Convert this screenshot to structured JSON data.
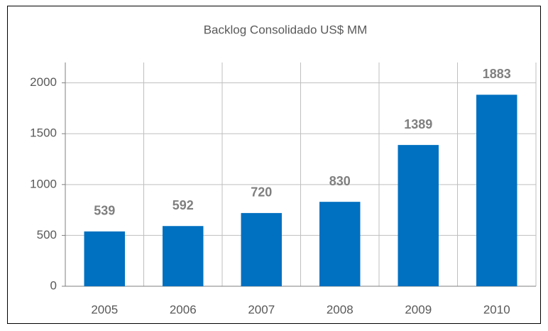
{
  "chart_data": {
    "type": "bar",
    "title": "Backlog Consolidado US$ MM",
    "categories": [
      "2005",
      "2006",
      "2007",
      "2008",
      "2009",
      "2010"
    ],
    "values": [
      539,
      592,
      720,
      830,
      1389,
      1883
    ],
    "color": "#0070c0",
    "ylim": [
      0,
      2200
    ],
    "yticks": [
      0,
      500,
      1000,
      1500,
      2000
    ],
    "grid": true
  }
}
